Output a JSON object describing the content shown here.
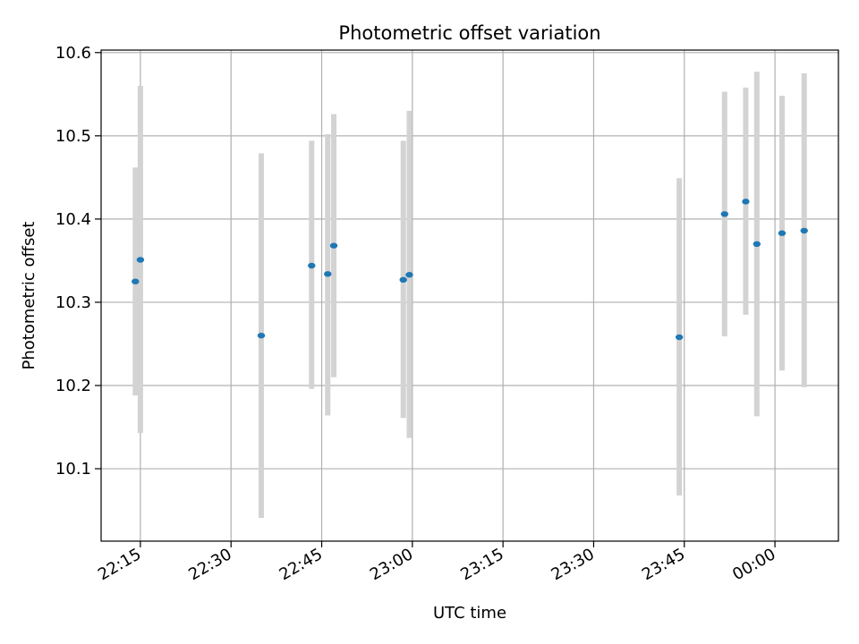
{
  "chart_data": {
    "type": "scatter",
    "title": "Photometric offset variation",
    "xlabel": "UTC time",
    "ylabel": "Photometric offset",
    "grid": true,
    "x_ticks": [
      "22:15",
      "22:30",
      "22:45",
      "23:00",
      "23:15",
      "23:30",
      "23:45",
      "00:00"
    ],
    "y_ticks": [
      "10.1",
      "10.2",
      "10.3",
      "10.4",
      "10.5",
      "10.6"
    ],
    "xlim": [
      "22:08:30",
      "00:10:30"
    ],
    "ylim": [
      10.013,
      10.603
    ],
    "colors": {
      "marker": "#1f77b4",
      "errorbar": "#d3d3d3",
      "grid": "#b0b0b0"
    },
    "points": [
      {
        "x": "22:14:10",
        "y": 10.325,
        "ylow": 10.188,
        "yhigh": 10.462
      },
      {
        "x": "22:15:00",
        "y": 10.351,
        "ylow": 10.143,
        "yhigh": 10.56
      },
      {
        "x": "22:35:00",
        "y": 10.26,
        "ylow": 10.041,
        "yhigh": 10.479
      },
      {
        "x": "22:43:20",
        "y": 10.344,
        "ylow": 10.196,
        "yhigh": 10.494
      },
      {
        "x": "22:46:00",
        "y": 10.334,
        "ylow": 10.164,
        "yhigh": 10.502
      },
      {
        "x": "22:47:00",
        "y": 10.368,
        "ylow": 10.21,
        "yhigh": 10.526
      },
      {
        "x": "22:58:30",
        "y": 10.327,
        "ylow": 10.161,
        "yhigh": 10.494
      },
      {
        "x": "22:59:30",
        "y": 10.333,
        "ylow": 10.137,
        "yhigh": 10.53
      },
      {
        "x": "23:44:10",
        "y": 10.258,
        "ylow": 10.068,
        "yhigh": 10.449
      },
      {
        "x": "23:51:40",
        "y": 10.406,
        "ylow": 10.259,
        "yhigh": 10.553
      },
      {
        "x": "23:55:10",
        "y": 10.421,
        "ylow": 10.285,
        "yhigh": 10.558
      },
      {
        "x": "23:57:00",
        "y": 10.37,
        "ylow": 10.163,
        "yhigh": 10.577
      },
      {
        "x": "00:01:10",
        "y": 10.383,
        "ylow": 10.218,
        "yhigh": 10.548
      },
      {
        "x": "00:04:50",
        "y": 10.386,
        "ylow": 10.198,
        "yhigh": 10.575
      }
    ]
  }
}
